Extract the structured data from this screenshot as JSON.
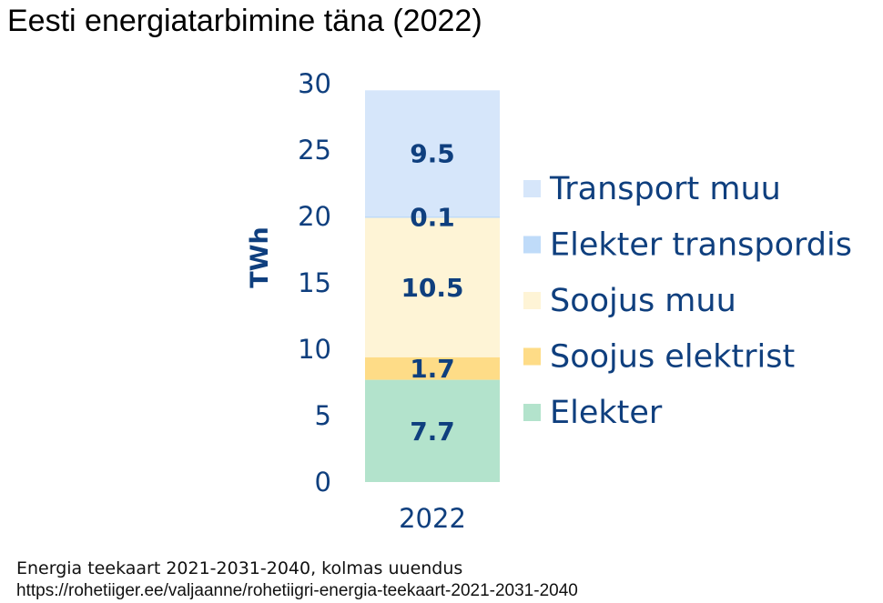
{
  "title": "Eesti energiatarbimine täna (2022)",
  "source": {
    "line1": "Energia teekaart 2021-2031-2040, kolmas uuendus",
    "line2": "https://rohetiiger.ee/valjaanne/rohetiigri-energia-teekaart-2021-2031-2040"
  },
  "chart_data": {
    "type": "bar",
    "stacked": true,
    "categories": [
      "2022"
    ],
    "ylabel": "TWh",
    "ylim": [
      0,
      30
    ],
    "yticks": [
      0,
      5,
      10,
      15,
      20,
      25,
      30
    ],
    "grid": false,
    "legend_position": "right",
    "series": [
      {
        "name": "Elekter",
        "values": [
          7.7
        ],
        "label": "7.7",
        "color": "#b3e3cc"
      },
      {
        "name": "Soojus elektrist",
        "values": [
          1.7
        ],
        "label": "1.7",
        "color": "#fedc87"
      },
      {
        "name": "Soojus muu",
        "values": [
          10.5
        ],
        "label": "10.5",
        "color": "#fef4d6"
      },
      {
        "name": "Elekter transpordis",
        "values": [
          0.1
        ],
        "label": "0.1",
        "color": "#bfdbf9"
      },
      {
        "name": "Transport muu",
        "values": [
          9.5
        ],
        "label": "9.5",
        "color": "#d6e6fa"
      }
    ],
    "legend_order": [
      "Transport muu",
      "Elekter transpordis",
      "Soojus muu",
      "Soojus elektrist",
      "Elekter"
    ]
  }
}
